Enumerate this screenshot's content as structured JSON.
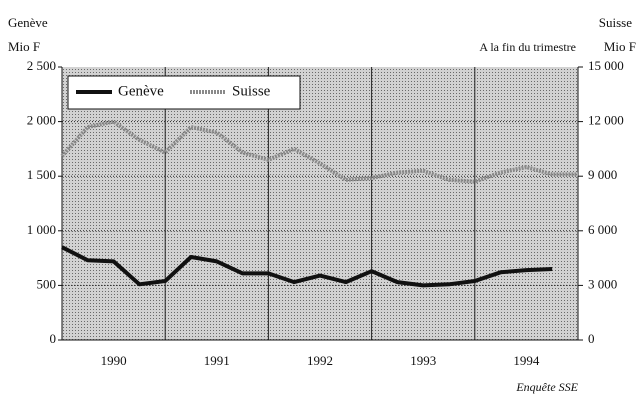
{
  "chart_data": {
    "type": "line",
    "left_axis_title": "Genève",
    "left_axis_unit": "Mio F",
    "right_axis_title": "Suisse",
    "right_axis_unit": "Mio F",
    "annotation": "A la fin du trimestre",
    "source": "Enquête SSE",
    "x": [
      1990,
      1990.25,
      1990.5,
      1990.75,
      1991,
      1991.25,
      1991.5,
      1991.75,
      1992,
      1992.25,
      1992.5,
      1992.75,
      1993,
      1993.25,
      1993.5,
      1993.75,
      1994,
      1994.25,
      1994.5,
      1994.75,
      1995
    ],
    "series": [
      {
        "name": "Genève",
        "color": "#111111",
        "values": [
          850,
          730,
          720,
          510,
          540,
          760,
          720,
          610,
          610,
          530,
          590,
          530,
          630,
          530,
          500,
          510,
          540,
          620,
          640,
          650,
          null
        ]
      },
      {
        "name": "Suisse",
        "color": "#8a8a8a",
        "axis": "y2",
        "values": [
          10100,
          11700,
          12000,
          11000,
          10300,
          11700,
          11400,
          10300,
          9900,
          10500,
          9700,
          8800,
          8900,
          9200,
          9300,
          8800,
          8700,
          9200,
          9500,
          9100,
          9100
        ]
      }
    ],
    "xlim": [
      1990,
      1995
    ],
    "xticks": [
      {
        "value": 1990.5,
        "label": "1990"
      },
      {
        "value": 1991.5,
        "label": "1991"
      },
      {
        "value": 1992.5,
        "label": "1992"
      },
      {
        "value": 1993.5,
        "label": "1993"
      },
      {
        "value": 1994.5,
        "label": "1994"
      }
    ],
    "xgrid": [
      1991,
      1992,
      1993,
      1994
    ],
    "ylim": [
      0,
      2500
    ],
    "yticks": [
      0,
      {
        "value": 500,
        "label": "500"
      },
      {
        "value": 1000,
        "label": "1 000"
      },
      {
        "value": 1500,
        "label": "1 500"
      },
      {
        "value": 2000,
        "label": "2 000"
      },
      {
        "value": 2500,
        "label": "2 500"
      }
    ],
    "y2lim": [
      0,
      15000
    ],
    "y2ticks": [
      0,
      {
        "value": 3000,
        "label": "3 000"
      },
      {
        "value": 6000,
        "label": "6 000"
      },
      {
        "value": 9000,
        "label": "9 000"
      },
      {
        "value": 12000,
        "label": "12 000"
      },
      {
        "value": 15000,
        "label": "15 000"
      }
    ],
    "grid": true,
    "legend": "top-left"
  }
}
